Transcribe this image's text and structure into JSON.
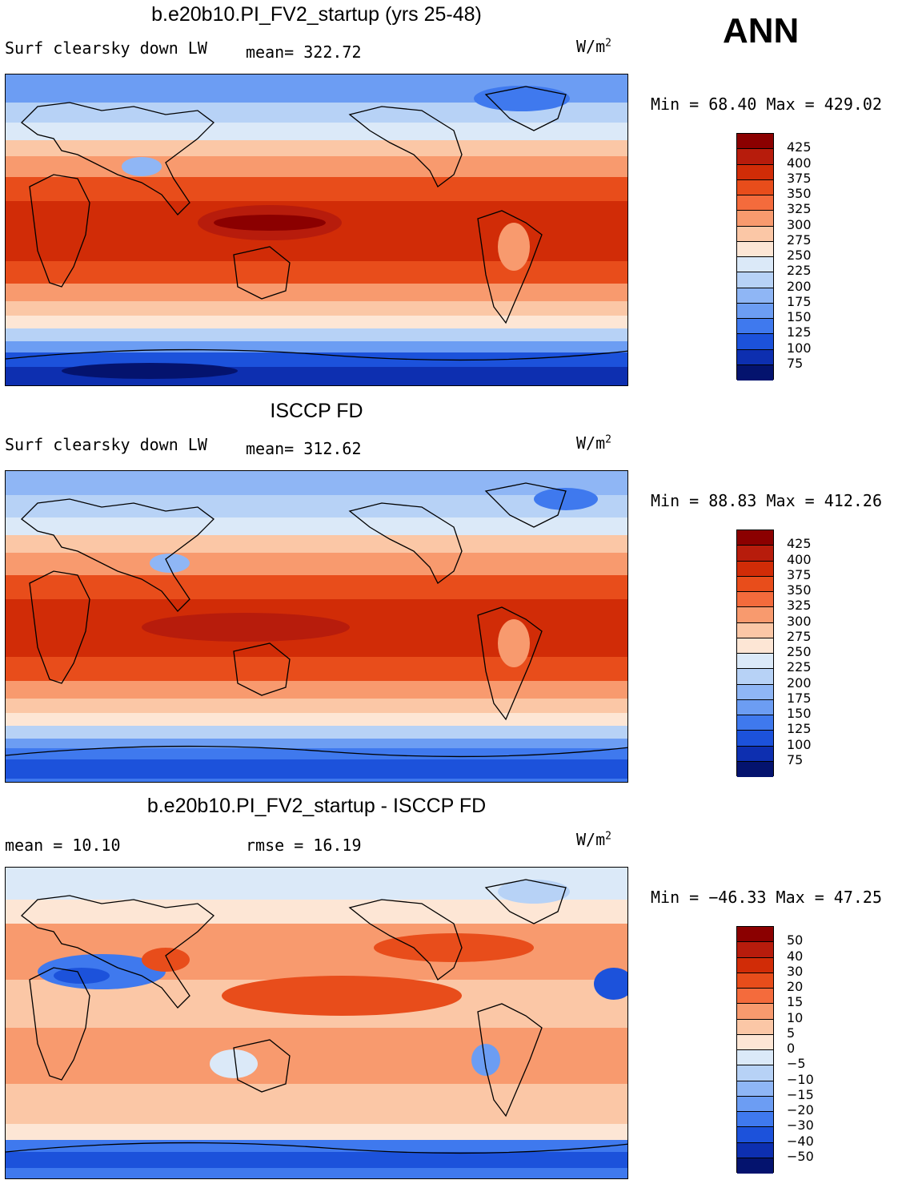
{
  "ann_label": "ANN",
  "units_base": "W/m",
  "units_exp": "2",
  "panels": [
    {
      "title": "b.e20b10.PI_FV2_startup (yrs 25-48)",
      "left_label": "Surf clearsky down LW",
      "mid_label": "mean= 322.72",
      "range_label": "Min =  68.40 Max = 429.02",
      "levels": [
        "425",
        "400",
        "375",
        "350",
        "325",
        "300",
        "275",
        "250",
        "225",
        "200",
        "175",
        "150",
        "125",
        "100",
        "75"
      ],
      "colors": [
        "#8b0000",
        "#b71c0c",
        "#d12c07",
        "#e84d1b",
        "#f46b3c",
        "#f89a6e",
        "#fbc7a6",
        "#fde6d5",
        "#dbe9f8",
        "#b7d2f6",
        "#8fb6f5",
        "#6c9df3",
        "#3f79ee",
        "#1c52db",
        "#0d2fb0",
        "#04136e"
      ]
    },
    {
      "title": "ISCCP FD",
      "left_label": "Surf clearsky down LW",
      "mid_label": "mean= 312.62",
      "range_label": "Min =  88.83 Max = 412.26",
      "levels": [
        "425",
        "400",
        "375",
        "350",
        "325",
        "300",
        "275",
        "250",
        "225",
        "200",
        "175",
        "150",
        "125",
        "100",
        "75"
      ],
      "colors": [
        "#8b0000",
        "#b71c0c",
        "#d12c07",
        "#e84d1b",
        "#f46b3c",
        "#f89a6e",
        "#fbc7a6",
        "#fde6d5",
        "#dbe9f8",
        "#b7d2f6",
        "#8fb6f5",
        "#6c9df3",
        "#3f79ee",
        "#1c52db",
        "#0d2fb0",
        "#04136e"
      ]
    },
    {
      "title": "b.e20b10.PI_FV2_startup - ISCCP FD",
      "left_label": "mean =   10.10",
      "mid_label": "rmse =   16.19",
      "range_label": "Min = −46.33 Max =  47.25",
      "levels": [
        "50",
        "40",
        "30",
        "20",
        "15",
        "10",
        "5",
        "0",
        "−5",
        "−10",
        "−15",
        "−20",
        "−30",
        "−40",
        "−50"
      ],
      "colors": [
        "#8b0000",
        "#b71c0c",
        "#d12c07",
        "#e84d1b",
        "#f46b3c",
        "#f89a6e",
        "#fbc7a6",
        "#fde6d5",
        "#dbe9f8",
        "#b7d2f6",
        "#8fb6f5",
        "#6c9df3",
        "#3f79ee",
        "#1c52db",
        "#0d2fb0",
        "#04136e"
      ]
    }
  ]
}
